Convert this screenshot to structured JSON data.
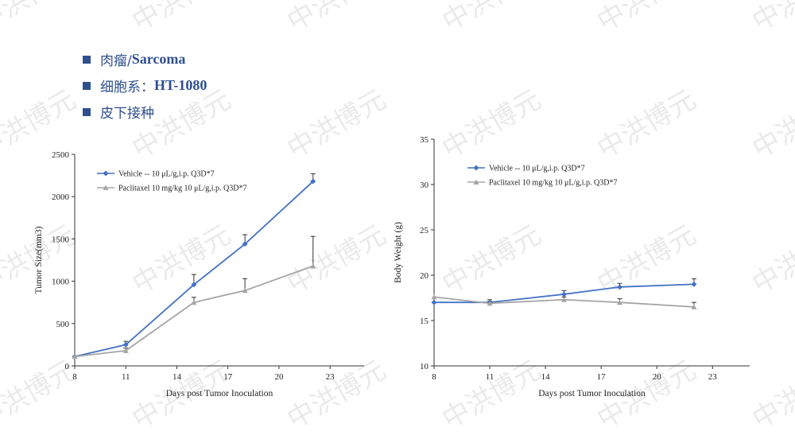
{
  "bullets": [
    {
      "zh": "肉瘤/",
      "en": "Sarcoma"
    },
    {
      "zh": "细胞系：",
      "en": "HT-1080"
    },
    {
      "zh": "皮下接种",
      "en": ""
    }
  ],
  "watermark_text": "中洪博元",
  "colors": {
    "vehicle": "#4472c4",
    "paclitaxel": "#a5a5a5",
    "bullet": "#2f4f8f"
  },
  "chart_data": [
    {
      "type": "line",
      "xlabel": "Days post Tumor Inoculation",
      "ylabel": "Tumor Size(mm3)",
      "xticks": [
        8,
        11,
        14,
        17,
        20,
        23
      ],
      "yticks": [
        0,
        500,
        1000,
        1500,
        2000,
        2500
      ],
      "xlim": [
        8,
        25
      ],
      "ylim": [
        0,
        2500
      ],
      "series": [
        {
          "name": "Vehicle -- 10 μL/g,i.p. Q3D*7",
          "marker": "diamond",
          "x": [
            8,
            11,
            15,
            18,
            22
          ],
          "y": [
            110,
            250,
            960,
            1440,
            2180
          ],
          "err": [
            0,
            40,
            120,
            110,
            90
          ]
        },
        {
          "name": "Paclitaxel 10 mg/kg 10 μL/g,i.p. Q3D*7",
          "marker": "triangle",
          "x": [
            8,
            11,
            15,
            18,
            22
          ],
          "y": [
            110,
            180,
            750,
            890,
            1180
          ],
          "err": [
            0,
            30,
            60,
            140,
            350
          ]
        }
      ]
    },
    {
      "type": "line",
      "xlabel": "Days post Tumor Inoculation",
      "ylabel": "Body Weight (g)",
      "xticks": [
        8,
        11,
        14,
        17,
        20,
        23
      ],
      "yticks": [
        10,
        15,
        20,
        25,
        30,
        35
      ],
      "xlim": [
        8,
        25
      ],
      "ylim": [
        10,
        35
      ],
      "series": [
        {
          "name": "Vehicle -- 10 μL/g,i.p. Q3D*7",
          "marker": "diamond",
          "x": [
            8,
            11,
            15,
            18,
            22
          ],
          "y": [
            17.0,
            17.0,
            17.9,
            18.7,
            19.0
          ],
          "err": [
            0,
            0.3,
            0.4,
            0.4,
            0.6
          ]
        },
        {
          "name": "Paclitaxel 10 mg/kg 10 μL/g,i.p. Q3D*7",
          "marker": "triangle",
          "x": [
            8,
            11,
            15,
            18,
            22
          ],
          "y": [
            17.6,
            16.9,
            17.3,
            17.0,
            16.5
          ],
          "err": [
            0,
            0.2,
            0.3,
            0.4,
            0.5
          ]
        }
      ]
    }
  ]
}
